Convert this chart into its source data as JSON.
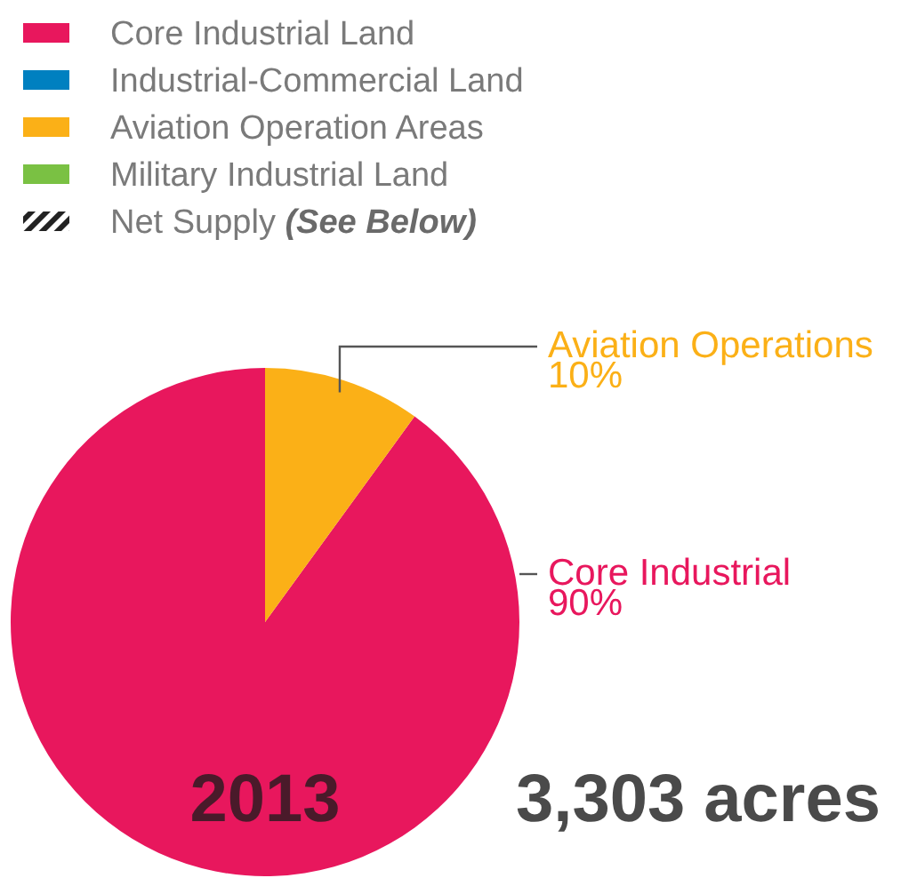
{
  "chart_data": {
    "type": "pie",
    "title": "2013",
    "subtitle": "3,303 acres",
    "categories": [
      "Core Industrial Land",
      "Industrial-Commercial Land",
      "Aviation Operation Areas",
      "Military Industrial Land",
      "Net Supply (See Below)"
    ],
    "values": [
      90,
      0,
      10,
      0,
      null
    ],
    "colors": [
      "#e8175d",
      "#0080c0",
      "#fbb017",
      "#7ac143",
      "#222222"
    ],
    "value_labels": [
      "Core Industrial\n90%",
      null,
      "Aviation Operations\n10%",
      null,
      null
    ],
    "legend": "top left"
  }
}
